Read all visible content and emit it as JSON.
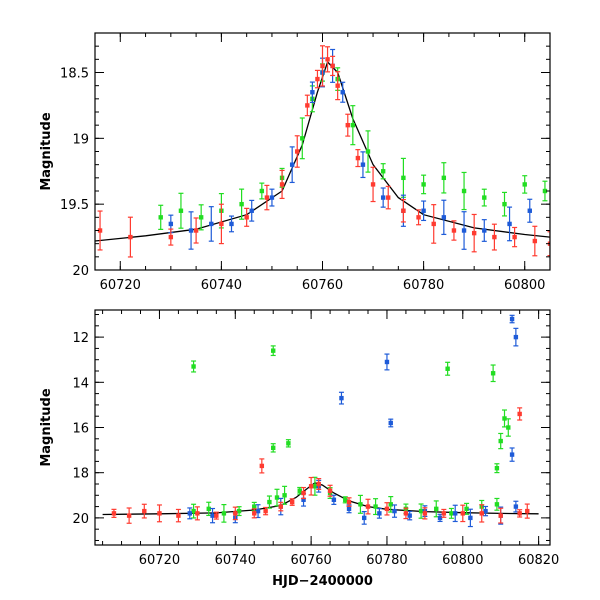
{
  "chart_data": [
    {
      "type": "scatter",
      "title": "",
      "xlabel": "",
      "ylabel": "Magnitude",
      "xlim": [
        60715,
        60805
      ],
      "ylim": [
        20.0,
        18.2
      ],
      "y_inverted": true,
      "xticks": [
        60720,
        60740,
        60760,
        60780,
        60800
      ],
      "yticks": [
        18.5,
        19,
        19.5,
        20
      ],
      "ytick_labels": [
        "18.5",
        "19",
        "19.5",
        "20"
      ],
      "minor_xtick_step": 5,
      "minor_ytick_step": 0.1,
      "series": [
        {
          "color": "#ff3b30",
          "x": [
            60716,
            60722,
            60730,
            60735,
            60740,
            60745,
            60749,
            60752,
            60755,
            60757,
            60759,
            60760,
            60761,
            60762,
            60763,
            60765,
            60767,
            60770,
            60773,
            60776,
            60779,
            60782,
            60786,
            60790,
            60794,
            60798,
            60802,
            60805
          ],
          "y": [
            19.7,
            19.75,
            19.75,
            19.7,
            19.65,
            19.6,
            19.45,
            19.35,
            19.1,
            18.75,
            18.55,
            18.45,
            18.4,
            18.45,
            18.6,
            18.9,
            19.15,
            19.35,
            19.45,
            19.55,
            19.6,
            19.65,
            19.7,
            19.72,
            19.75,
            19.75,
            19.78,
            19.8
          ]
        },
        {
          "color": "#1e5bd8",
          "x": [
            60730,
            60734,
            60738,
            60742,
            60746,
            60750,
            60754,
            60758,
            60760,
            60762,
            60764,
            60768,
            60772,
            60776,
            60780,
            60784,
            60788,
            60792,
            60797,
            60801
          ],
          "y": [
            19.65,
            19.7,
            19.65,
            19.65,
            19.55,
            19.45,
            19.2,
            18.65,
            18.5,
            18.45,
            18.65,
            19.2,
            19.45,
            19.55,
            19.55,
            19.6,
            19.7,
            19.7,
            19.65,
            19.55
          ]
        },
        {
          "color": "#22dd22",
          "x": [
            60728,
            60732,
            60736,
            60740,
            60744,
            60748,
            60752,
            60756,
            60758,
            60760,
            60763,
            60766,
            60769,
            60772,
            60776,
            60780,
            60784,
            60788,
            60792,
            60796,
            60800,
            60804
          ],
          "y": [
            19.6,
            19.55,
            19.6,
            19.55,
            19.5,
            19.4,
            19.3,
            19.0,
            18.7,
            18.5,
            18.55,
            18.9,
            19.1,
            19.25,
            19.3,
            19.35,
            19.3,
            19.4,
            19.45,
            19.5,
            19.35,
            19.4
          ]
        }
      ],
      "model_curve": {
        "color": "#000000",
        "x": [
          60715,
          60725,
          60735,
          60745,
          60752,
          60756,
          60759,
          60761,
          60763,
          60766,
          60770,
          60775,
          60780,
          60790,
          60800,
          60805
        ],
        "y": [
          19.78,
          19.74,
          19.69,
          19.58,
          19.4,
          19.05,
          18.65,
          18.42,
          18.5,
          18.85,
          19.2,
          19.45,
          19.58,
          19.68,
          19.73,
          19.75
        ]
      }
    },
    {
      "type": "scatter",
      "title": "",
      "xlabel": "HJD−2400000",
      "ylabel": "Magnitude",
      "xlim": [
        60703,
        60823
      ],
      "ylim": [
        21.2,
        10.8
      ],
      "y_inverted": true,
      "xticks": [
        60720,
        60740,
        60760,
        60780,
        60800,
        60820
      ],
      "yticks": [
        12,
        14,
        16,
        18,
        20
      ],
      "ytick_labels": [
        "12",
        "14",
        "16",
        "18",
        "20"
      ],
      "minor_xtick_step": 5,
      "minor_ytick_step": 0.5,
      "series": [
        {
          "color": "#ff3b30",
          "x": [
            60708,
            60712,
            60716,
            60720,
            60725,
            60730,
            60735,
            60740,
            60745,
            60748,
            60752,
            60755,
            60758,
            60760,
            60762,
            60765,
            60770,
            60775,
            60780,
            60785,
            60790,
            60795,
            60800,
            60805,
            60810,
            60815,
            60817,
            60747,
            60815
          ],
          "y": [
            19.8,
            19.9,
            19.7,
            19.8,
            19.9,
            19.8,
            19.9,
            19.8,
            19.8,
            19.7,
            19.5,
            19.3,
            18.9,
            18.6,
            18.5,
            18.8,
            19.3,
            19.5,
            19.6,
            19.8,
            19.8,
            19.8,
            19.8,
            19.8,
            19.9,
            19.8,
            19.7,
            17.7,
            15.4
          ]
        },
        {
          "color": "#1e5bd8",
          "x": [
            60728,
            60734,
            60740,
            60746,
            60752,
            60758,
            60762,
            60766,
            60770,
            60774,
            60778,
            60782,
            60786,
            60790,
            60794,
            60798,
            60802,
            60806,
            60810,
            60814,
            60768,
            60780,
            60781,
            60813,
            60814,
            60813
          ],
          "y": [
            19.8,
            19.9,
            20.0,
            19.7,
            19.5,
            19.2,
            18.6,
            19.2,
            19.6,
            20.0,
            19.8,
            19.7,
            19.9,
            19.7,
            20.0,
            19.8,
            20.0,
            19.7,
            19.9,
            19.5,
            14.7,
            13.1,
            15.8,
            11.2,
            12.0,
            17.2
          ]
        },
        {
          "color": "#22dd22",
          "x": [
            60729,
            60733,
            60737,
            60741,
            60745,
            60749,
            60751,
            60753,
            60757,
            60761,
            60765,
            60769,
            60773,
            60777,
            60781,
            60785,
            60789,
            60793,
            60797,
            60801,
            60805,
            60809,
            60729,
            60750,
            60750,
            60754,
            60796,
            60808,
            60811,
            60810,
            60812,
            60809
          ],
          "y": [
            19.7,
            19.6,
            19.8,
            19.7,
            19.5,
            19.3,
            19.1,
            19.0,
            18.8,
            18.6,
            18.9,
            19.2,
            19.4,
            19.5,
            19.4,
            19.6,
            19.7,
            19.6,
            19.8,
            19.6,
            19.5,
            19.4,
            13.3,
            12.6,
            16.9,
            16.7,
            13.4,
            13.6,
            15.6,
            16.6,
            16.0,
            17.8
          ]
        }
      ],
      "model_curve": {
        "color": "#000000",
        "x": [
          60705,
          60720,
          60735,
          60745,
          60752,
          60756,
          60759,
          60761,
          60763,
          60766,
          60770,
          60775,
          60780,
          60790,
          60800,
          60810,
          60820
        ],
        "y": [
          19.85,
          19.82,
          19.78,
          19.65,
          19.45,
          19.1,
          18.7,
          18.45,
          18.55,
          18.9,
          19.25,
          19.5,
          19.62,
          19.72,
          19.77,
          19.8,
          19.82
        ]
      }
    }
  ]
}
